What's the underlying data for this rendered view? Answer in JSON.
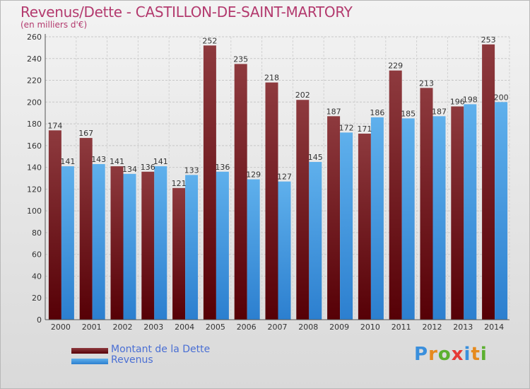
{
  "header": {
    "title": "Revenus/Dette - CASTILLON-DE-SAINT-MARTORY",
    "subtitle": "(en milliers d'€)"
  },
  "colors": {
    "dette": "#7a1f24",
    "revenus": "#3a8fdc",
    "title": "#b33a6e",
    "legend_text": "#4a6fd4"
  },
  "legend": {
    "dette_label": "Montant de la Dette",
    "revenus_label": "Revenus"
  },
  "logo": {
    "text": "Proxiti"
  },
  "chart_data": {
    "type": "bar",
    "title": "Revenus/Dette - CASTILLON-DE-SAINT-MARTORY",
    "subtitle": "(en milliers d'€)",
    "categories": [
      "2000",
      "2001",
      "2002",
      "2003",
      "2004",
      "2005",
      "2006",
      "2007",
      "2008",
      "2009",
      "2010",
      "2011",
      "2012",
      "2013",
      "2014"
    ],
    "series": [
      {
        "name": "Montant de la Dette",
        "color": "#7a1f24",
        "values": [
          174,
          167,
          141,
          136,
          121,
          252,
          235,
          218,
          202,
          187,
          171,
          229,
          213,
          196,
          253
        ]
      },
      {
        "name": "Revenus",
        "color": "#3a8fdc",
        "values": [
          141,
          143,
          134,
          141,
          133,
          136,
          129,
          127,
          145,
          172,
          186,
          185,
          187,
          198,
          200
        ]
      }
    ],
    "ylim": [
      0,
      260
    ],
    "yticks": [
      0,
      20,
      40,
      60,
      80,
      100,
      120,
      140,
      160,
      180,
      200,
      220,
      240,
      260
    ],
    "grid": true,
    "legend_position": "bottom-left"
  }
}
